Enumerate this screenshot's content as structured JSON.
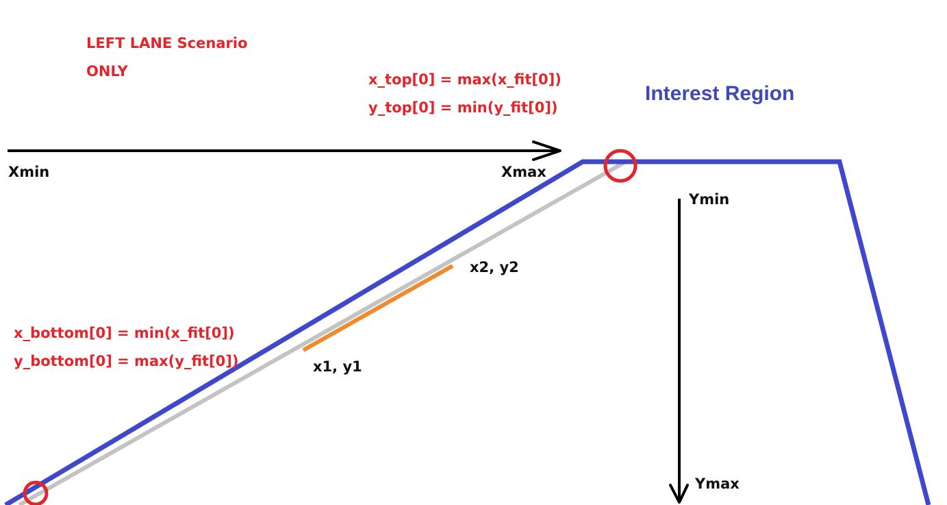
{
  "scenario": {
    "line1": "LEFT LANE Scenario",
    "line2": "ONLY"
  },
  "region_title": "Interest Region",
  "top_formulas": {
    "x": "x_top[0] = max(x_fit[0])",
    "y": "y_top[0] = min(y_fit[0])"
  },
  "bottom_formulas": {
    "x": "x_bottom[0] = min(x_fit[0])",
    "y": "y_bottom[0] = max(y_fit[0])"
  },
  "x_axis": {
    "min_label": "Xmin",
    "max_label": "Xmax"
  },
  "y_axis": {
    "min_label": "Ymin",
    "max_label": "Ymax"
  },
  "segment_points": {
    "start": "x1, y1",
    "end": "x2, y2"
  },
  "colors": {
    "region_outline": "#3f48cc",
    "fit_line": "#c3c3c3",
    "segment": "#f08a2c",
    "marker": "#e3262c",
    "annotation_text": "#e3262c",
    "title_text": "#3f48b8",
    "axis": "#000000"
  }
}
